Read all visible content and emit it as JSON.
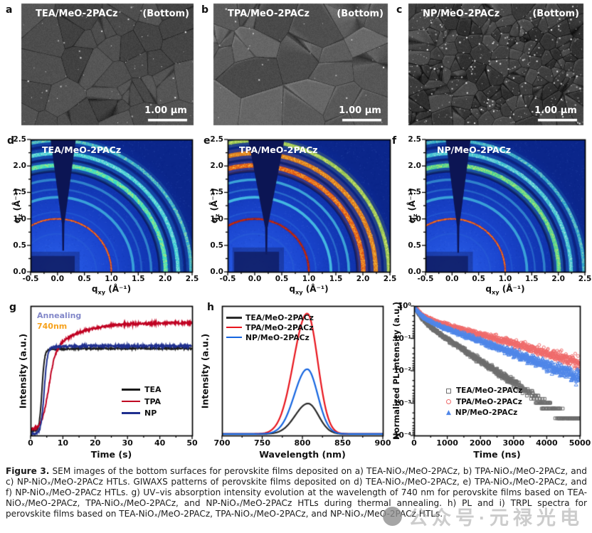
{
  "panels": {
    "letters": [
      "a",
      "b",
      "c",
      "d",
      "e",
      "f",
      "g",
      "h",
      "i"
    ],
    "sem": [
      {
        "title": "TEA/MeO-2PACz",
        "corner": "(Bottom)",
        "scalebar": "1.00 μm",
        "style": {
          "grain": 42,
          "base": 76,
          "range": 22,
          "speckles": 70,
          "seed": 7,
          "ridge": false
        }
      },
      {
        "title": "TPA/MeO-2PACz",
        "corner": "(Bottom)",
        "scalebar": "1.00 μm",
        "style": {
          "grain": 30,
          "base": 90,
          "range": 34,
          "speckles": 30,
          "seed": 19,
          "ridge": true
        }
      },
      {
        "title": "NP/MeO-2PACz",
        "corner": "(Bottom)",
        "scalebar": "1.00 μm",
        "style": {
          "grain": 150,
          "base": 60,
          "range": 32,
          "speckles": 420,
          "seed": 41,
          "ridge": true
        }
      }
    ]
  },
  "caption": {
    "label": "Figure 3.",
    "body": " SEM images of the bottom surfaces for perovskite films deposited on a) TEA-NiOₓ/MeO-2PACz, b) TPA-NiOₓ/MeO-2PACz, and c) NP-NiOₓ/MeO-2PACz HTLs. GIWAXS patterns of perovskite films deposited on d) TEA-NiOₓ/MeO-2PACz, e) TPA-NiOₓ/MeO-2PACz, and f) NP-NiOₓ/MeO-2PACz HTLs. g) UV–vis absorption intensity evolution at the wavelength of 740 nm for perovskite films based on TEA-NiOₓ/MeO-2PACz, TPA-NiOₓ/MeO-2PACz, and NP-NiOₓ/MeO-2PACz HTLs during thermal annealing. h) PL and i) TRPL spectra for perovskite films based on TEA-NiOₓ/MeO-2PACz, TPA-NiOₓ/MeO-2PACz, and NP-NiOₓ/MeO-2PACz HTLs."
  },
  "watermark": {
    "text": "公众号·元禄光电"
  },
  "chart_data": [
    {
      "id": "d",
      "type": "heatmap",
      "subtype": "giwaxs2d",
      "title": "TEA/MeO-2PACz",
      "xlabel": {
        "pre": "q",
        "sub": "xy",
        "post": " (Å⁻¹)"
      },
      "ylabel": {
        "pre": "q",
        "sub": "z",
        "post": " (Å⁻¹)"
      },
      "xlim": [
        -0.5,
        2.5
      ],
      "ylim": [
        0,
        2.5
      ],
      "x_ticks": [
        "-0.5",
        "0.0",
        "0.5",
        "1.0",
        "1.5",
        "2.0",
        "2.5"
      ],
      "y_ticks": [
        "0.0",
        "0.5",
        "1.0",
        "1.5",
        "2.0",
        "2.5"
      ],
      "rings": [
        [
          0.72,
          "#2a62d8",
          0.035,
          0.4,
          null
        ],
        [
          1.0,
          "#c01700",
          0.02,
          1,
          "#ff7a20"
        ],
        [
          1.13,
          "#2f74dc",
          0.028,
          0.35,
          null
        ],
        [
          1.41,
          "#46c2e2",
          0.05,
          0.75,
          null
        ],
        [
          1.56,
          "#3a92dc",
          0.032,
          0.45,
          null
        ],
        [
          1.74,
          "#44b4de",
          0.045,
          0.6,
          null
        ],
        [
          1.9,
          "#0a1a60",
          0.05,
          0.85,
          null
        ],
        [
          2.01,
          "#3fe4c4",
          0.08,
          0.95,
          "#d8f060"
        ],
        [
          2.12,
          "#0a1c66",
          0.048,
          0.8,
          null
        ],
        [
          2.24,
          "#41d8d8",
          0.072,
          0.9,
          "#b2f0e2"
        ],
        [
          2.37,
          "#0b2070",
          0.038,
          0.65,
          null
        ],
        [
          2.48,
          "#3cc4da",
          0.062,
          0.82,
          "#b0e8a0"
        ]
      ],
      "wedge": [
        -0.13,
        0.34,
        0.4
      ],
      "block": [
        -0.5,
        0.32,
        0.3
      ]
    },
    {
      "id": "e",
      "type": "heatmap",
      "subtype": "giwaxs2d",
      "title": "TPA/MeO-2PACz",
      "xlabel": {
        "pre": "q",
        "sub": "xy",
        "post": " (Å⁻¹)"
      },
      "ylabel": {
        "pre": "q",
        "sub": "z",
        "post": " (Å⁻¹)"
      },
      "xlim": [
        -0.5,
        2.5
      ],
      "ylim": [
        0,
        2.5
      ],
      "x_ticks": [
        "-0.5",
        "0.0",
        "0.5",
        "1.0",
        "1.5",
        "2.0",
        "2.5"
      ],
      "y_ticks": [
        "0.0",
        "0.5",
        "1.0",
        "1.5",
        "2.0",
        "2.5"
      ],
      "rings": [
        [
          0.72,
          "#2a62d8",
          0.035,
          0.45,
          null
        ],
        [
          1.0,
          "#930f00",
          0.026,
          1,
          "#d83000"
        ],
        [
          1.13,
          "#2f74dc",
          0.028,
          0.4,
          null
        ],
        [
          1.41,
          "#4ac8e6",
          0.05,
          0.88,
          null
        ],
        [
          1.56,
          "#3e9ade",
          0.032,
          0.5,
          null
        ],
        [
          1.74,
          "#48c0e2",
          0.048,
          0.78,
          null
        ],
        [
          1.9,
          "#0a1a60",
          0.05,
          0.85,
          null
        ],
        [
          2.01,
          "#e85c10",
          0.085,
          0.96,
          "#ffd24a"
        ],
        [
          2.12,
          "#0a1c66",
          0.05,
          0.8,
          null
        ],
        [
          2.24,
          "#e87c16",
          0.08,
          0.93,
          "#ffd24a"
        ],
        [
          2.37,
          "#0b2070",
          0.038,
          0.65,
          null
        ],
        [
          2.48,
          "#a8d84a",
          0.068,
          0.85,
          "#ecf47e"
        ]
      ],
      "wedge": [
        -0.12,
        0.55,
        0.33
      ],
      "block": [
        -0.38,
        0.45,
        0.38
      ]
    },
    {
      "id": "f",
      "type": "heatmap",
      "subtype": "giwaxs2d",
      "title": "NP/MeO-2PACz",
      "xlabel": {
        "pre": "q",
        "sub": "xy",
        "post": " (Å⁻¹)"
      },
      "ylabel": {
        "pre": "q",
        "sub": "z",
        "post": " (Å⁻¹)"
      },
      "xlim": [
        -0.5,
        2.5
      ],
      "ylim": [
        0,
        2.5
      ],
      "x_ticks": [
        "-0.5",
        "0.0",
        "0.5",
        "1.0",
        "1.5",
        "2.0",
        "2.5"
      ],
      "y_ticks": [
        "0.0",
        "0.5",
        "1.0",
        "1.5",
        "2.0",
        "2.5"
      ],
      "rings": [
        [
          0.72,
          "#2a62d8",
          0.035,
          0.4,
          null
        ],
        [
          1.0,
          "#c41c00",
          0.02,
          1,
          "#ff7a20"
        ],
        [
          1.13,
          "#2f74dc",
          0.028,
          0.35,
          null
        ],
        [
          1.41,
          "#46c2e2",
          0.05,
          0.75,
          null
        ],
        [
          1.56,
          "#3a92dc",
          0.032,
          0.45,
          null
        ],
        [
          1.74,
          "#44b4de",
          0.045,
          0.6,
          null
        ],
        [
          1.9,
          "#0a1a60",
          0.05,
          0.85,
          null
        ],
        [
          2.01,
          "#52d896",
          0.08,
          0.95,
          "#d8f060"
        ],
        [
          2.12,
          "#0a1c66",
          0.048,
          0.8,
          null
        ],
        [
          2.24,
          "#43ccd6",
          0.072,
          0.9,
          "#b2f0e2"
        ],
        [
          2.37,
          "#0b2070",
          0.038,
          0.65,
          null
        ],
        [
          2.48,
          "#38c0d8",
          0.062,
          0.8,
          "#a0e0c0"
        ]
      ],
      "wedge": [
        -0.12,
        0.35,
        0.36
      ],
      "block": [
        -0.5,
        0.3,
        0.3
      ]
    },
    {
      "id": "g",
      "type": "line",
      "xlabel": "Time (s)",
      "ylabel": "Intensity (a.u.)",
      "xlim": [
        0,
        50
      ],
      "x_ticks": [
        "0",
        "10",
        "20",
        "30",
        "40",
        "50"
      ],
      "annotations": [
        {
          "text": "Annealing",
          "color": "#8287c9"
        },
        {
          "text": "740nm",
          "color": "#f6a21d"
        }
      ],
      "series": [
        {
          "name": "TEA",
          "color": "#1a1a1a",
          "base": 0.035,
          "t0": 3.5,
          "w": 0.4,
          "fast": 0.625,
          "slow": 0.012,
          "tau": 5,
          "noise": 0.006
        },
        {
          "name": "TPA",
          "color": "#c00021",
          "base": 0.045,
          "t0": 5.4,
          "w": 1.05,
          "fast": 0.575,
          "slow": 0.25,
          "tau": 8,
          "noise": 0.009
        },
        {
          "name": "NP",
          "color": "#1f2f8f",
          "base": 0.012,
          "t0": 4.2,
          "w": 0.5,
          "fast": 0.665,
          "slow": 0.015,
          "tau": 5,
          "noise": 0.008
        }
      ]
    },
    {
      "id": "h",
      "type": "line",
      "xlabel": "Wavelength (nm)",
      "ylabel": "Intensity (a.u.)",
      "xlim": [
        700,
        900
      ],
      "x_ticks": [
        "700",
        "750",
        "800",
        "850",
        "900"
      ],
      "baseline": 0.012,
      "series": [
        {
          "name": "TEA/MeO-2PACz",
          "color": "#2a2a2a",
          "peak": 807,
          "height": 0.235,
          "sl": 16,
          "sr": 13
        },
        {
          "name": "TPA/MeO-2PACz",
          "color": "#e8151d",
          "peak": 806,
          "height": 0.93,
          "sl": 17,
          "sr": 13
        },
        {
          "name": "NP/MeO-2PACz",
          "color": "#1565e0",
          "peak": 806,
          "height": 0.5,
          "sl": 16,
          "sr": 13
        }
      ]
    },
    {
      "id": "i",
      "type": "scatter",
      "yscale": "log",
      "xlabel": "Time (ns)",
      "ylabel": "Normalized PL intensity (a.u.)",
      "xlim": [
        0,
        5000
      ],
      "x_ticks": [
        "0",
        "1000",
        "2000",
        "3000",
        "4000",
        "5000"
      ],
      "ylim_log": [
        0,
        -4
      ],
      "y_ticks": [
        "10⁰",
        "10⁻¹",
        "10⁻²",
        "10⁻³",
        "10⁻⁴"
      ],
      "series": [
        {
          "name": "TEA/MeO-2PACz",
          "color": "#6e6e6e",
          "marker": "square",
          "a1": 0.55,
          "t1": 150,
          "a2": 0.45,
          "t2": 640
        },
        {
          "name": "TPA/MeO-2PACz",
          "color": "#ef6a6a",
          "marker": "circle",
          "a1": 0.5,
          "t1": 180,
          "a2": 0.5,
          "t2": 1500
        },
        {
          "name": "NP/MeO-2PACz",
          "color": "#4f86e8",
          "marker": "triangle",
          "a1": 0.52,
          "t1": 160,
          "a2": 0.48,
          "t2": 1150
        }
      ]
    }
  ]
}
